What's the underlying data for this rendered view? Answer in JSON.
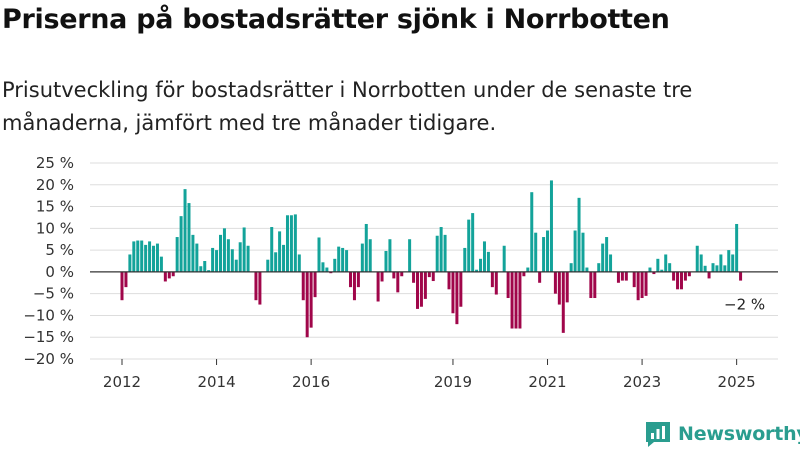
{
  "title": "Priserna på bostadsrätter sjönk i Norrbotten",
  "subtitle": "Prisutveckling för bostadsrätter i Norrbotten under de senaste tre månaderna, jämfört med tre månader tidigare.",
  "brand": {
    "name": "Newsworthy",
    "icon": "newsworthy-logo-icon"
  },
  "colors": {
    "positive": "#13a39a",
    "negative": "#a0064a",
    "grid": "#dddddd",
    "axis": "#333333",
    "brand": "#2a9d8f"
  },
  "chart_data": {
    "type": "bar",
    "x_unit": "month",
    "x_start": "2012-01",
    "values": [
      -6.5,
      -3.5,
      4,
      7,
      7.2,
      7.2,
      6.2,
      7,
      6,
      6.5,
      3.5,
      -2.2,
      -1.5,
      -1,
      8,
      12.8,
      19,
      15.8,
      8.5,
      6.5,
      1.3,
      2.5,
      0.4,
      5.5,
      5,
      8.5,
      10,
      7.5,
      5.2,
      2.8,
      6.8,
      10.2,
      6,
      0,
      -6.5,
      -7.5,
      0,
      2.8,
      10.3,
      4.5,
      9.3,
      6.2,
      13,
      13,
      13.2,
      4,
      -6.5,
      -15,
      -12.8,
      -5.8,
      7.9,
      2.2,
      1,
      -0.3,
      3,
      5.8,
      5.5,
      5,
      -3.5,
      -6.5,
      -3.5,
      6.5,
      11,
      7.5,
      0,
      -6.8,
      -2.2,
      4.8,
      7.5,
      -1.5,
      -4.7,
      -1,
      0.1,
      7.5,
      -2.5,
      -8.5,
      -8,
      -6.2,
      -1.2,
      -2.1,
      8.3,
      10.3,
      8.5,
      -4,
      -9.5,
      -12,
      -8,
      5.5,
      12,
      13.5,
      0.5,
      3,
      7,
      4.6,
      -3.5,
      -5.2,
      0,
      6,
      -6,
      -13,
      -13,
      -13,
      -1,
      1,
      18.3,
      9,
      -2.5,
      8,
      9.5,
      21,
      -5,
      -7.5,
      -14,
      -7,
      2,
      9.5,
      17,
      9,
      1,
      -6,
      -6,
      2,
      6.5,
      8,
      4,
      0,
      -2.5,
      -2,
      -2,
      0,
      -3.5,
      -6.5,
      -6,
      -5.5,
      1,
      -0.5,
      3,
      0.5,
      4,
      2,
      -2,
      -4,
      -4,
      -2,
      -1,
      0,
      6,
      4,
      1.4,
      -1.5,
      2,
      1.5,
      4,
      1.5,
      5,
      4,
      11,
      -2
    ],
    "ylim": [
      -20,
      25
    ],
    "yticks": [
      25,
      20,
      15,
      10,
      5,
      0,
      -5,
      -10,
      -15,
      -20
    ],
    "ytick_labels": [
      "25 %",
      "20 %",
      "15 %",
      "10 %",
      "5 %",
      "0 %",
      "−5 %",
      "−10 %",
      "−15 %",
      "−20 %"
    ],
    "xticks": [
      {
        "label": "2012",
        "month": 0
      },
      {
        "label": "2014",
        "month": 24
      },
      {
        "label": "2016",
        "month": 48
      },
      {
        "label": "2019",
        "month": 84
      },
      {
        "label": "2021",
        "month": 108
      },
      {
        "label": "2023",
        "month": 132
      },
      {
        "label": "2025",
        "month": 156
      }
    ],
    "grid": true,
    "last_value_label": "−2 %"
  }
}
